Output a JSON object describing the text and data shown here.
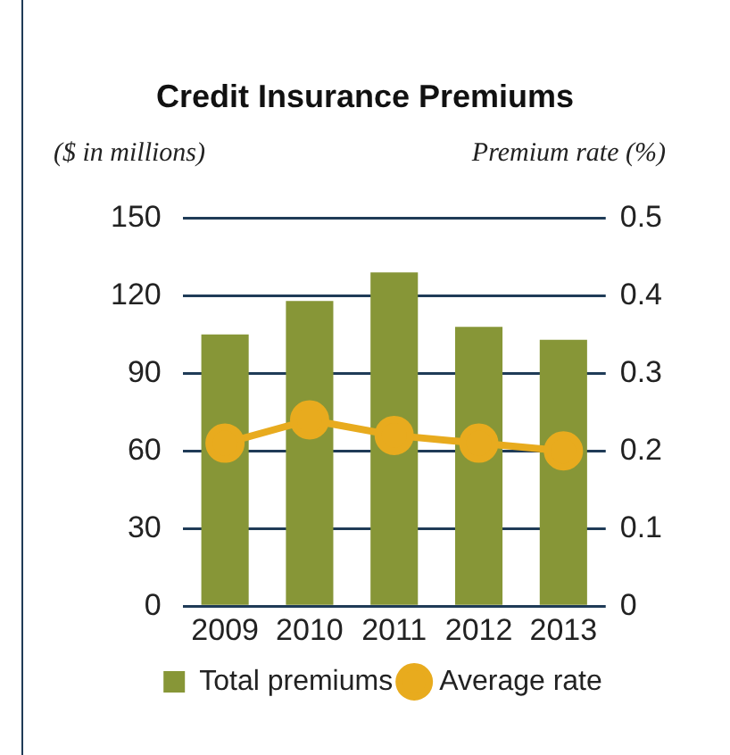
{
  "chart_data": {
    "type": "bar",
    "title": "Credit Insurance Premiums",
    "ylabel": "($ in millions)",
    "y2label": "Premium rate (%)",
    "categories": [
      "2009",
      "2010",
      "2011",
      "2012",
      "2013"
    ],
    "series": [
      {
        "name": "Total premiums",
        "color": "#879637",
        "values": [
          105,
          118,
          129,
          108,
          103
        ]
      },
      {
        "name": "Average rate",
        "type": "line",
        "axis": "y2",
        "color": "#e8ab1e",
        "values": [
          0.21,
          0.24,
          0.22,
          0.21,
          0.2
        ]
      }
    ],
    "ylim": [
      0,
      150
    ],
    "yticks": [
      0,
      30,
      60,
      90,
      120,
      150
    ],
    "y2lim": [
      0,
      0.5
    ],
    "y2ticks": [
      0,
      0.1,
      0.2,
      0.3,
      0.4,
      0.5
    ],
    "grid": "y",
    "legend": "bottom",
    "marker": "circle",
    "line_style": "solid"
  }
}
